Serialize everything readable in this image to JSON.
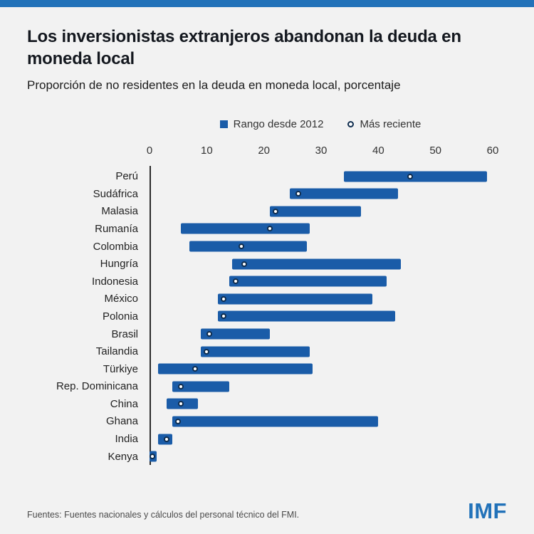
{
  "colors": {
    "top_bar": "#2272b9",
    "bar": "#1a5ca8",
    "dot_stroke": "#0f2d4e",
    "imf": "#2272b9",
    "background": "#f2f2f2"
  },
  "header": {
    "title": "Los inversionistas extranjeros abandonan la deuda en moneda local",
    "subtitle": "Proporción de no residentes en la deuda en moneda local, porcentaje"
  },
  "legend": {
    "range_label": "Rango desde 2012",
    "recent_label": "Más reciente"
  },
  "footer": {
    "source": "Fuentes: Fuentes nacionales y cálculos del personal técnico del FMI.",
    "logo": "IMF"
  },
  "chart_data": {
    "type": "bar",
    "subtype": "horizontal-range-with-dot",
    "title": "Los inversionistas extranjeros abandonan la deuda en moneda local",
    "xlabel": "Proporción de no residentes en la deuda en moneda local, porcentaje",
    "ylabel": "",
    "xlim": [
      0,
      60
    ],
    "xticks": [
      0,
      10,
      20,
      30,
      40,
      50,
      60
    ],
    "grid": false,
    "legend_position": "top-center",
    "series": [
      {
        "name": "Rango desde 2012",
        "style": "range-bar"
      },
      {
        "name": "Más reciente",
        "style": "open-dot"
      }
    ],
    "rows": [
      {
        "label": "Perú",
        "range": [
          34,
          59
        ],
        "recent": 45.5
      },
      {
        "label": "Sudáfrica",
        "range": [
          24.5,
          43.5
        ],
        "recent": 26
      },
      {
        "label": "Malasia",
        "range": [
          21,
          37
        ],
        "recent": 22
      },
      {
        "label": "Rumanía",
        "range": [
          5.5,
          28
        ],
        "recent": 21
      },
      {
        "label": "Colombia",
        "range": [
          7,
          27.5
        ],
        "recent": 16
      },
      {
        "label": "Hungría",
        "range": [
          14.5,
          44
        ],
        "recent": 16.5
      },
      {
        "label": "Indonesia",
        "range": [
          14,
          41.5
        ],
        "recent": 15
      },
      {
        "label": "México",
        "range": [
          12,
          39
        ],
        "recent": 13
      },
      {
        "label": "Polonia",
        "range": [
          12,
          43
        ],
        "recent": 13
      },
      {
        "label": "Brasil",
        "range": [
          9,
          21
        ],
        "recent": 10.5
      },
      {
        "label": "Tailandia",
        "range": [
          9,
          28
        ],
        "recent": 10
      },
      {
        "label": "Türkiye",
        "range": [
          1.5,
          28.5
        ],
        "recent": 8
      },
      {
        "label": "Rep. Dominicana",
        "range": [
          4,
          14
        ],
        "recent": 5.5
      },
      {
        "label": "China",
        "range": [
          3,
          8.5
        ],
        "recent": 5.5
      },
      {
        "label": "Ghana",
        "range": [
          4,
          40
        ],
        "recent": 5
      },
      {
        "label": "India",
        "range": [
          1.5,
          4
        ],
        "recent": 3
      },
      {
        "label": "Kenya",
        "range": [
          0,
          1.2
        ],
        "recent": 0.5
      }
    ]
  }
}
